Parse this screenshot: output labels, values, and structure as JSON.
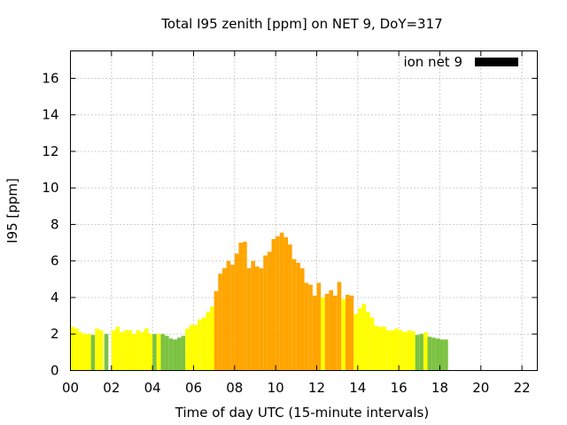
{
  "chart_data": {
    "type": "bar",
    "title": "Total I95 zenith [ppm] on NET 9, DoY=317",
    "xlabel": "Time of day UTC (15-minute intervals)",
    "ylabel": "I95 [ppm]",
    "xlim": [
      0,
      22.75
    ],
    "ylim": [
      0,
      17.5
    ],
    "x_ticks": [
      "00",
      "02",
      "04",
      "06",
      "08",
      "10",
      "12",
      "14",
      "16",
      "18",
      "20",
      "22"
    ],
    "y_ticks": [
      "0",
      "2",
      "4",
      "6",
      "8",
      "10",
      "12",
      "14",
      "16"
    ],
    "grid": true,
    "legend_position": "top-right",
    "bar_width_hours": 0.2,
    "series": [
      {
        "name": "ion net 9",
        "legend_color": "#000000",
        "points": [
          {
            "t": 0.1,
            "v": 2.4,
            "c": "#ffff00"
          },
          {
            "t": 0.3,
            "v": 2.3,
            "c": "#ffff00"
          },
          {
            "t": 0.5,
            "v": 2.1,
            "c": "#ffff00"
          },
          {
            "t": 0.7,
            "v": 2.0,
            "c": "#ffff00"
          },
          {
            "t": 0.9,
            "v": 2.0,
            "c": "#ffff00"
          },
          {
            "t": 1.1,
            "v": 1.95,
            "c": "#7cc242"
          },
          {
            "t": 1.3,
            "v": 2.3,
            "c": "#ffff00"
          },
          {
            "t": 1.5,
            "v": 2.2,
            "c": "#ffff00"
          },
          {
            "t": 1.75,
            "v": 2.0,
            "c": "#7cc242"
          },
          {
            "t": 2.1,
            "v": 2.2,
            "c": "#ffff00"
          },
          {
            "t": 2.3,
            "v": 2.4,
            "c": "#ffff00"
          },
          {
            "t": 2.5,
            "v": 2.1,
            "c": "#ffff00"
          },
          {
            "t": 2.7,
            "v": 2.2,
            "c": "#ffff00"
          },
          {
            "t": 2.9,
            "v": 2.2,
            "c": "#ffff00"
          },
          {
            "t": 3.1,
            "v": 2.0,
            "c": "#ffff00"
          },
          {
            "t": 3.3,
            "v": 2.2,
            "c": "#ffff00"
          },
          {
            "t": 3.5,
            "v": 2.1,
            "c": "#ffff00"
          },
          {
            "t": 3.7,
            "v": 2.3,
            "c": "#ffff00"
          },
          {
            "t": 3.9,
            "v": 2.0,
            "c": "#ffff00"
          },
          {
            "t": 4.1,
            "v": 2.0,
            "c": "#7cc242"
          },
          {
            "t": 4.3,
            "v": 2.0,
            "c": "#ffff00"
          },
          {
            "t": 4.5,
            "v": 2.0,
            "c": "#7cc242"
          },
          {
            "t": 4.7,
            "v": 1.9,
            "c": "#7cc242"
          },
          {
            "t": 4.9,
            "v": 1.75,
            "c": "#7cc242"
          },
          {
            "t": 5.1,
            "v": 1.7,
            "c": "#7cc242"
          },
          {
            "t": 5.3,
            "v": 1.8,
            "c": "#7cc242"
          },
          {
            "t": 5.5,
            "v": 1.9,
            "c": "#7cc242"
          },
          {
            "t": 5.7,
            "v": 2.3,
            "c": "#ffff00"
          },
          {
            "t": 5.9,
            "v": 2.5,
            "c": "#ffff00"
          },
          {
            "t": 6.1,
            "v": 2.5,
            "c": "#ffff00"
          },
          {
            "t": 6.3,
            "v": 2.8,
            "c": "#ffff00"
          },
          {
            "t": 6.5,
            "v": 2.9,
            "c": "#ffff00"
          },
          {
            "t": 6.7,
            "v": 3.2,
            "c": "#ffff00"
          },
          {
            "t": 6.9,
            "v": 3.5,
            "c": "#ffff00"
          },
          {
            "t": 7.1,
            "v": 4.35,
            "c": "#ffa500"
          },
          {
            "t": 7.3,
            "v": 5.3,
            "c": "#ffa500"
          },
          {
            "t": 7.5,
            "v": 5.6,
            "c": "#ffa500"
          },
          {
            "t": 7.7,
            "v": 6.0,
            "c": "#ffa500"
          },
          {
            "t": 7.9,
            "v": 5.8,
            "c": "#ffa500"
          },
          {
            "t": 8.1,
            "v": 6.4,
            "c": "#ffa500"
          },
          {
            "t": 8.3,
            "v": 7.0,
            "c": "#ffa500"
          },
          {
            "t": 8.5,
            "v": 7.05,
            "c": "#ffa500"
          },
          {
            "t": 8.7,
            "v": 5.6,
            "c": "#ffa500"
          },
          {
            "t": 8.9,
            "v": 6.0,
            "c": "#ffa500"
          },
          {
            "t": 9.1,
            "v": 5.7,
            "c": "#ffa500"
          },
          {
            "t": 9.3,
            "v": 5.6,
            "c": "#ffa500"
          },
          {
            "t": 9.5,
            "v": 6.3,
            "c": "#ffa500"
          },
          {
            "t": 9.7,
            "v": 6.5,
            "c": "#ffa500"
          },
          {
            "t": 9.9,
            "v": 7.2,
            "c": "#ffa500"
          },
          {
            "t": 10.1,
            "v": 7.35,
            "c": "#ffa500"
          },
          {
            "t": 10.3,
            "v": 7.55,
            "c": "#ffa500"
          },
          {
            "t": 10.5,
            "v": 7.3,
            "c": "#ffa500"
          },
          {
            "t": 10.7,
            "v": 6.9,
            "c": "#ffa500"
          },
          {
            "t": 10.9,
            "v": 6.1,
            "c": "#ffa500"
          },
          {
            "t": 11.1,
            "v": 5.9,
            "c": "#ffa500"
          },
          {
            "t": 11.3,
            "v": 5.6,
            "c": "#ffa500"
          },
          {
            "t": 11.5,
            "v": 4.8,
            "c": "#ffa500"
          },
          {
            "t": 11.7,
            "v": 4.7,
            "c": "#ffa500"
          },
          {
            "t": 11.9,
            "v": 4.1,
            "c": "#ffa500"
          },
          {
            "t": 12.1,
            "v": 4.8,
            "c": "#ffa500"
          },
          {
            "t": 12.3,
            "v": 4.0,
            "c": "#ffff00"
          },
          {
            "t": 12.5,
            "v": 4.2,
            "c": "#ffa500"
          },
          {
            "t": 12.7,
            "v": 4.4,
            "c": "#ffa500"
          },
          {
            "t": 12.9,
            "v": 4.1,
            "c": "#ffa500"
          },
          {
            "t": 13.1,
            "v": 4.85,
            "c": "#ffa500"
          },
          {
            "t": 13.3,
            "v": 3.9,
            "c": "#ffff00"
          },
          {
            "t": 13.5,
            "v": 4.15,
            "c": "#ffa500"
          },
          {
            "t": 13.7,
            "v": 4.1,
            "c": "#ffa500"
          },
          {
            "t": 13.9,
            "v": 3.1,
            "c": "#ffff00"
          },
          {
            "t": 14.1,
            "v": 3.4,
            "c": "#ffff00"
          },
          {
            "t": 14.3,
            "v": 3.65,
            "c": "#ffff00"
          },
          {
            "t": 14.5,
            "v": 3.2,
            "c": "#ffff00"
          },
          {
            "t": 14.7,
            "v": 2.9,
            "c": "#ffff00"
          },
          {
            "t": 14.9,
            "v": 2.45,
            "c": "#ffff00"
          },
          {
            "t": 15.1,
            "v": 2.4,
            "c": "#ffff00"
          },
          {
            "t": 15.3,
            "v": 2.4,
            "c": "#ffff00"
          },
          {
            "t": 15.5,
            "v": 2.2,
            "c": "#ffff00"
          },
          {
            "t": 15.7,
            "v": 2.2,
            "c": "#ffff00"
          },
          {
            "t": 15.9,
            "v": 2.3,
            "c": "#ffff00"
          },
          {
            "t": 16.1,
            "v": 2.2,
            "c": "#ffff00"
          },
          {
            "t": 16.3,
            "v": 2.1,
            "c": "#ffff00"
          },
          {
            "t": 16.5,
            "v": 2.2,
            "c": "#ffff00"
          },
          {
            "t": 16.7,
            "v": 2.15,
            "c": "#ffff00"
          },
          {
            "t": 16.9,
            "v": 1.95,
            "c": "#7cc242"
          },
          {
            "t": 17.1,
            "v": 2.0,
            "c": "#7cc242"
          },
          {
            "t": 17.3,
            "v": 2.1,
            "c": "#ffff00"
          },
          {
            "t": 17.5,
            "v": 1.85,
            "c": "#7cc242"
          },
          {
            "t": 17.7,
            "v": 1.8,
            "c": "#7cc242"
          },
          {
            "t": 17.9,
            "v": 1.75,
            "c": "#7cc242"
          },
          {
            "t": 18.1,
            "v": 1.7,
            "c": "#7cc242"
          },
          {
            "t": 18.3,
            "v": 1.7,
            "c": "#7cc242"
          }
        ]
      }
    ]
  }
}
